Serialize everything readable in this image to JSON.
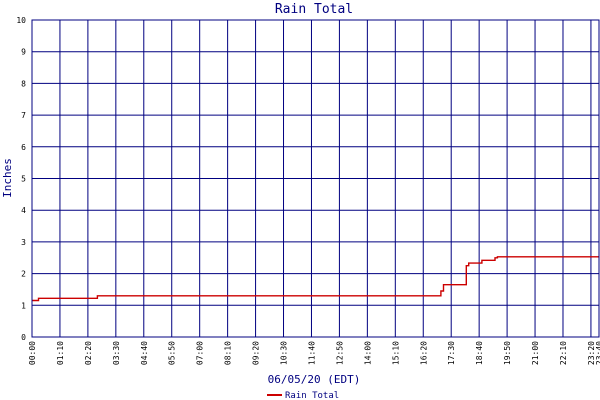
{
  "chart_data": {
    "type": "line",
    "title": "Rain Total",
    "xlabel": "06/05/20 (EDT)",
    "ylabel": "Inches",
    "ylim": [
      0,
      10
    ],
    "yticks": [
      "0",
      "1",
      "2",
      "3",
      "4",
      "5",
      "6",
      "7",
      "8",
      "9",
      "10"
    ],
    "xlim_hours": [
      0,
      23.67
    ],
    "xticks": [
      "00:00",
      "01:10",
      "02:20",
      "03:30",
      "04:40",
      "05:50",
      "07:00",
      "08:10",
      "09:20",
      "10:30",
      "11:40",
      "12:50",
      "14:00",
      "15:10",
      "16:20",
      "17:30",
      "18:40",
      "19:50",
      "21:00",
      "22:10",
      "23:20",
      "23:40"
    ],
    "grid": true,
    "legend_position": "bottom",
    "series": [
      {
        "name": "Rain Total",
        "color": "#cc0000",
        "x_hours": [
          0,
          0.27,
          0.27,
          2.73,
          2.73,
          17.07,
          17.07,
          17.18,
          17.18,
          18.13,
          18.13,
          18.23,
          18.23,
          18.78,
          18.78,
          19.33,
          19.33,
          19.43,
          19.43,
          23.67
        ],
        "values": [
          1.15,
          1.15,
          1.22,
          1.22,
          1.3,
          1.3,
          1.45,
          1.45,
          1.65,
          1.65,
          2.25,
          2.25,
          2.33,
          2.33,
          2.42,
          2.42,
          2.5,
          2.5,
          2.53,
          2.53
        ]
      }
    ]
  },
  "colors": {
    "grid": "#000080",
    "frame": "#000080",
    "text": "#000080",
    "axis_text": "#000000"
  }
}
